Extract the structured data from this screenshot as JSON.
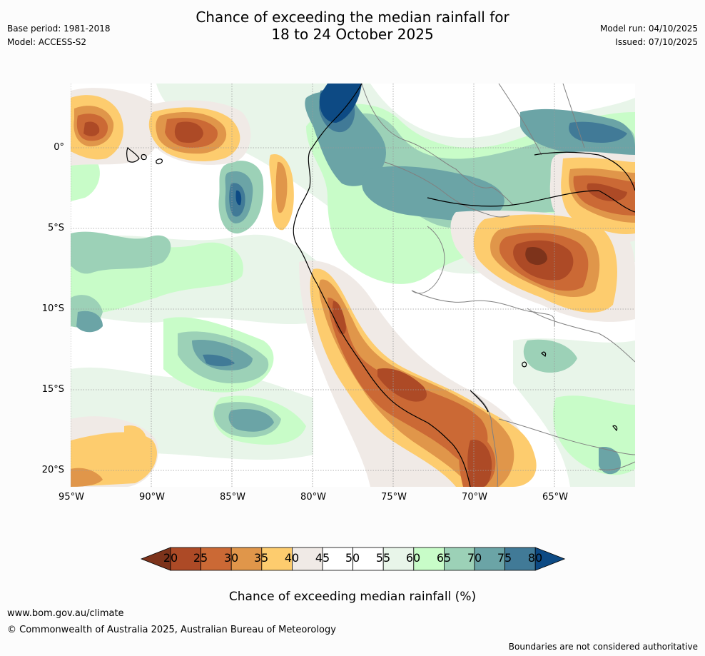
{
  "header": {
    "title_line1": "Chance of exceeding the median rainfall for",
    "title_line2": "18 to 24 October 2025",
    "base_period": "Base period: 1981-2018",
    "model": "Model: ACCESS-S2",
    "model_run": "Model run: 04/10/2025",
    "issued": "Issued: 07/10/2025"
  },
  "map": {
    "lat_labels": [
      "0°",
      "5°S",
      "10°S",
      "15°S",
      "20°S"
    ],
    "lon_labels": [
      "95°W",
      "90°W",
      "85°W",
      "80°W",
      "75°W",
      "70°W",
      "65°W"
    ]
  },
  "colorbar": {
    "ticks": [
      "20",
      "25",
      "30",
      "35",
      "40",
      "45",
      "50",
      "55",
      "60",
      "65",
      "70",
      "75",
      "80"
    ],
    "label": "Chance of exceeding median rainfall (%)",
    "colors": [
      "#7d331b",
      "#ad4a26",
      "#cb6935",
      "#e0964a",
      "#fdcc6e",
      "#f0eae6",
      "#ffffff",
      "#ffffff",
      "#e8f5e9",
      "#c8fcc8",
      "#9cd1b7",
      "#6ba4a6",
      "#417a97",
      "#0d4a84"
    ]
  },
  "footer": {
    "url": "www.bom.gov.au/climate",
    "copyright": "© Commonwealth of Australia 2025, Australian Bureau of Meteorology",
    "disclaimer": "Boundaries are not considered authoritative"
  }
}
